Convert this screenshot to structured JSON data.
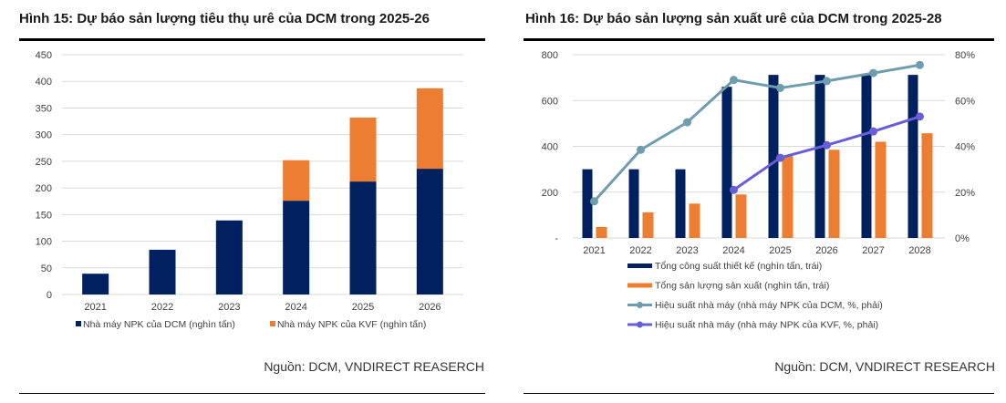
{
  "figures": [
    {
      "title": "Hình 15: Dự báo sản lượng tiêu thụ urê của DCM trong 2025-26",
      "source": "Nguồn: DCM, VNDIRECT REASERCH"
    },
    {
      "title": "Hình 16: Dự báo sản lượng sản xuất urê của DCM trong 2025-28",
      "source": "Nguồn: DCM, VNDIRECT RESEARCH"
    }
  ],
  "chart_data": [
    {
      "type": "bar",
      "stacked": true,
      "title": "Hình 15: Dự báo sản lượng tiêu thụ urê của DCM trong 2025-26",
      "categories": [
        "2021",
        "2022",
        "2023",
        "2024",
        "2025",
        "2026"
      ],
      "series": [
        {
          "name": "Nhà máy NPK của DCM (nghìn tấn)",
          "color": "#002060",
          "values": [
            39,
            84,
            139,
            176,
            212,
            236
          ]
        },
        {
          "name": "Nhà máy NPK của KVF (nghìn tấn)",
          "color": "#ED7D31",
          "values": [
            0,
            0,
            0,
            76,
            120,
            151
          ]
        }
      ],
      "ylim": [
        0,
        450
      ],
      "yticks": [
        "0",
        "50",
        "100",
        "150",
        "200",
        "250",
        "300",
        "350",
        "400",
        "450"
      ],
      "ytick_values": [
        0,
        50,
        100,
        150,
        200,
        250,
        300,
        350,
        400,
        450
      ],
      "grid": true,
      "legend": "bottom"
    },
    {
      "type": "bar",
      "combo": "bar+line",
      "title": "Hình 16: Dự báo sản lượng sản xuất urê của DCM trong 2025-28",
      "categories": [
        "2021",
        "2022",
        "2023",
        "2024",
        "2025",
        "2026",
        "2027",
        "2028"
      ],
      "series": [
        {
          "name": "Tổng công suất thiết kế (nghìn tấn, trái)",
          "kind": "bar",
          "axis": "left",
          "color": "#002060",
          "values": [
            300,
            300,
            300,
            660,
            712,
            712,
            712,
            712
          ]
        },
        {
          "name": "Tổng sản lượng sản xuất (nghìn tấn, trái)",
          "kind": "bar",
          "axis": "left",
          "color": "#ED7D31",
          "values": [
            48,
            112,
            150,
            190,
            358,
            385,
            420,
            457
          ]
        },
        {
          "name": "Hiệu suất nhà máy (nhà máy NPK của DCM, %, phải)",
          "kind": "line",
          "axis": "right",
          "color": "#6E9DAE",
          "values": [
            16,
            38.5,
            50.5,
            69,
            65.5,
            68.5,
            72,
            75.5
          ]
        },
        {
          "name": "Hiệu suất nhà máy (nhà máy NPK của KVF, %, phải)",
          "kind": "line",
          "axis": "right",
          "color": "#6A5ED6",
          "values": [
            null,
            null,
            null,
            21,
            35,
            40.5,
            46.5,
            53
          ]
        }
      ],
      "ylim_left": [
        0,
        800
      ],
      "yticks_left": [
        "-",
        "200",
        "400",
        "600",
        "800"
      ],
      "ytick_values_left": [
        0,
        200,
        400,
        600,
        800
      ],
      "ylim_right": [
        0,
        80
      ],
      "yticks_right": [
        "0%",
        "20%",
        "40%",
        "60%",
        "80%"
      ],
      "ytick_values_right": [
        0,
        20,
        40,
        60,
        80
      ],
      "grid": true,
      "legend": "bottom"
    }
  ]
}
